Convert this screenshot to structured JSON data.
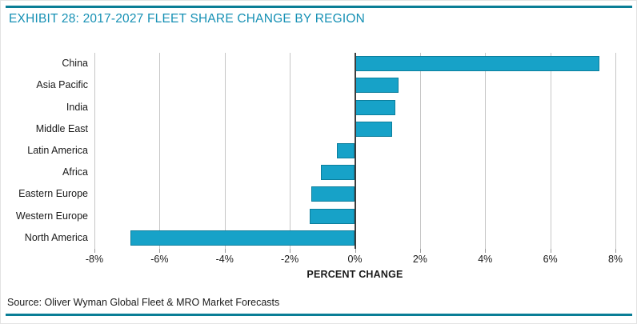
{
  "header": {
    "title": "EXHIBIT 28: 2017-2027 FLEET SHARE CHANGE BY REGION"
  },
  "footer": {
    "source": "Source: Oliver Wyman Global Fleet & MRO Market Forecasts"
  },
  "colors": {
    "rule_teal": "#0a7e96",
    "title_teal": "#1590b4",
    "bar_fill": "#17a2c8",
    "bar_border": "#0c7e9c",
    "gridline": "#c6c6c6",
    "zero_axis": "#3d3d3d",
    "text": "#1a1a1a"
  },
  "chart_data": {
    "type": "bar",
    "orientation": "horizontal",
    "title": "EXHIBIT 28: 2017-2027 FLEET SHARE CHANGE BY REGION",
    "categories": [
      "China",
      "Asia Pacific",
      "India",
      "Middle East",
      "Latin America",
      "Africa",
      "Eastern Europe",
      "Western Europe",
      "North America"
    ],
    "values": [
      7.5,
      1.35,
      1.25,
      1.15,
      -0.55,
      -1.05,
      -1.35,
      -1.4,
      -6.9
    ],
    "unit": "%",
    "xlabel": "PERCENT CHANGE",
    "ylabel": "",
    "xlim": [
      -8,
      8
    ],
    "x_tick_values": [
      -8,
      -6,
      -4,
      -2,
      0,
      2,
      4,
      6,
      8
    ],
    "x_tick_labels": [
      "-8%",
      "-6%",
      "-4%",
      "-2%",
      "0%",
      "2%",
      "4%",
      "6%",
      "8%"
    ],
    "grid": "vertical",
    "legend": "none"
  }
}
